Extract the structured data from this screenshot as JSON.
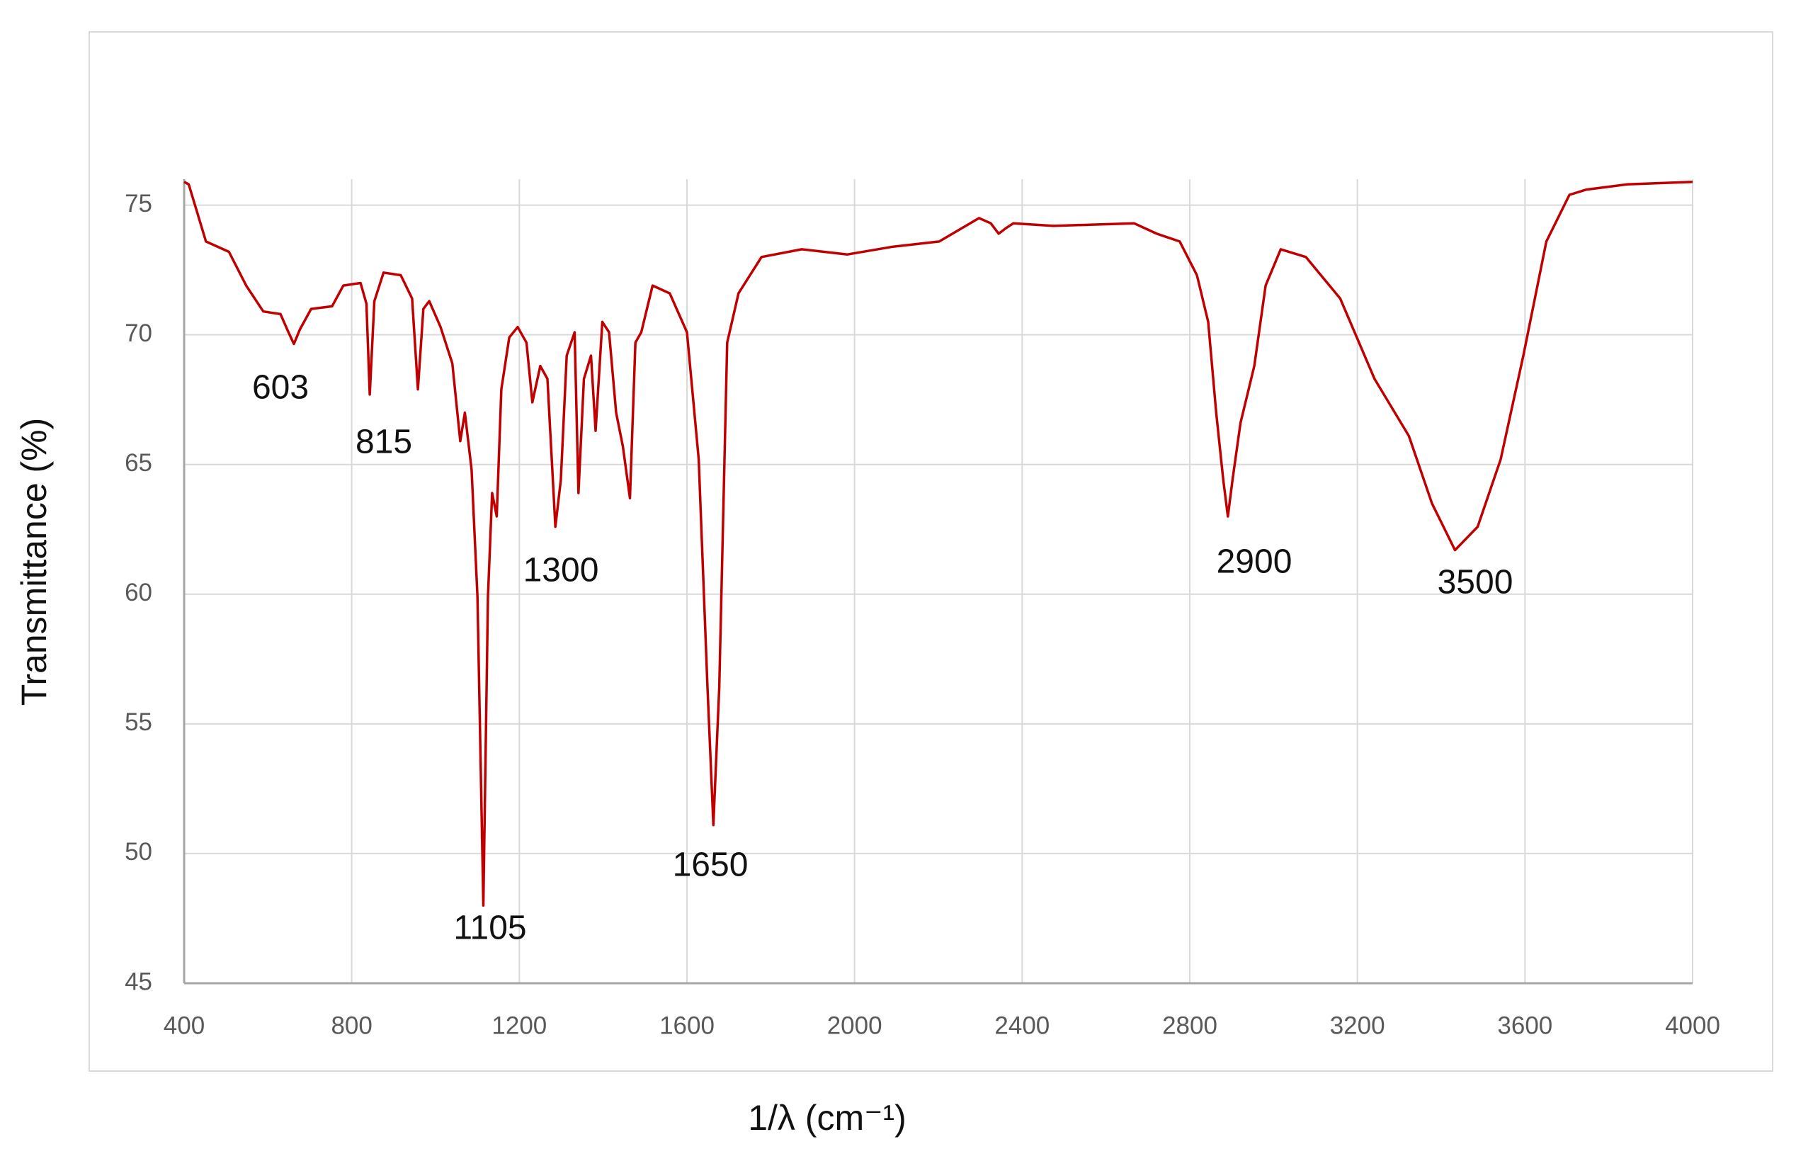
{
  "chart_data": {
    "type": "line",
    "y_label": "Transmittance (%)",
    "x_label": "1/λ (cm⁻¹)",
    "color": "#c00000",
    "grid": true,
    "xlim": [
      400,
      4000
    ],
    "xticks": [
      400,
      800,
      1200,
      1600,
      2000,
      2400,
      2800,
      3200,
      3600,
      4000
    ],
    "ylim": [
      45,
      76
    ],
    "yticks": [
      45,
      50,
      55,
      60,
      65,
      70,
      75
    ],
    "annotations": [
      "603",
      "815",
      "1105",
      "1300",
      "1650",
      "2900",
      "3500"
    ],
    "x": [
      400,
      411,
      452,
      507,
      548,
      589,
      630,
      649,
      662,
      676,
      703,
      753,
      780,
      821,
      835,
      843,
      854,
      876,
      917,
      944,
      958,
      971,
      985,
      1012,
      1040,
      1059,
      1070,
      1086,
      1100,
      1114,
      1125,
      1135,
      1146,
      1157,
      1176,
      1196,
      1217,
      1231,
      1250,
      1267,
      1286,
      1299,
      1313,
      1332,
      1341,
      1354,
      1371,
      1382,
      1398,
      1414,
      1431,
      1447,
      1464,
      1477,
      1491,
      1518,
      1559,
      1600,
      1628,
      1649,
      1663,
      1677,
      1696,
      1723,
      1778,
      1874,
      1983,
      2092,
      2202,
      2297,
      2325,
      2344,
      2360,
      2379,
      2475,
      2667,
      2721,
      2776,
      2817,
      2844,
      2863,
      2880,
      2891,
      2902,
      2921,
      2954,
      2981,
      3017,
      3077,
      3159,
      3241,
      3323,
      3378,
      3433,
      3487,
      3542,
      3596,
      3651,
      3706,
      3747,
      3843,
      4000
    ],
    "values": [
      75.9,
      75.8,
      73.6,
      73.2,
      71.9,
      70.9,
      70.8,
      70.1,
      69.65,
      70.2,
      71.0,
      71.1,
      71.9,
      72.0,
      71.2,
      67.7,
      71.3,
      72.4,
      72.3,
      71.4,
      67.9,
      71.0,
      71.3,
      70.3,
      68.9,
      65.9,
      67.0,
      64.8,
      59.9,
      48.0,
      59.9,
      63.9,
      63.0,
      67.9,
      69.9,
      70.3,
      69.7,
      67.4,
      68.8,
      68.3,
      62.6,
      64.4,
      69.2,
      70.1,
      63.9,
      68.3,
      69.2,
      66.3,
      70.5,
      70.1,
      67.0,
      65.7,
      63.7,
      69.7,
      70.1,
      71.9,
      71.6,
      70.1,
      65.2,
      56.4,
      51.1,
      56.4,
      69.7,
      71.6,
      73.0,
      73.3,
      73.1,
      73.4,
      73.6,
      74.5,
      74.3,
      73.9,
      74.1,
      74.3,
      74.2,
      74.3,
      73.9,
      73.6,
      72.3,
      70.5,
      67.0,
      64.4,
      63.0,
      64.4,
      66.6,
      68.8,
      71.9,
      73.3,
      73.0,
      71.4,
      68.3,
      66.1,
      63.5,
      61.7,
      62.6,
      65.2,
      69.2,
      73.6,
      75.4,
      75.6,
      75.8,
      75.9
    ]
  }
}
